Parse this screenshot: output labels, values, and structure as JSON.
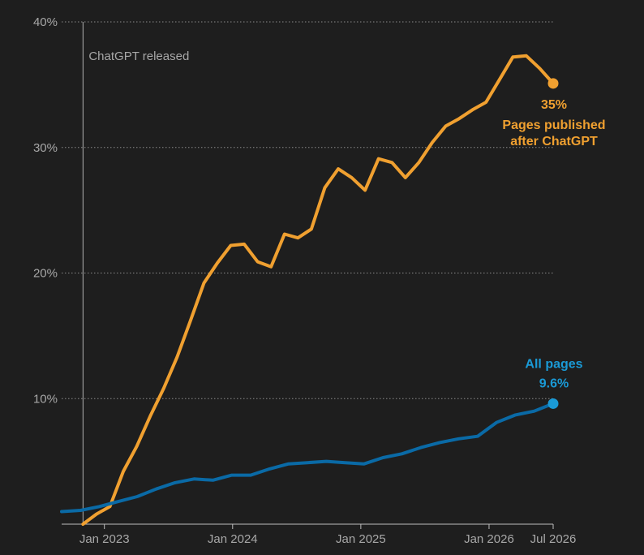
{
  "chart_data": {
    "type": "line",
    "title": "",
    "xlabel": "",
    "ylabel": "",
    "ylim": [
      0,
      40
    ],
    "y_ticks": [
      {
        "value": 10,
        "label": "10%"
      },
      {
        "value": 20,
        "label": "20%"
      },
      {
        "value": 30,
        "label": "30%"
      },
      {
        "value": 40,
        "label": "40%"
      }
    ],
    "x_ticks": [
      {
        "date": "2023-01",
        "label": "Jan 2023"
      },
      {
        "date": "2024-01",
        "label": "Jan 2024"
      },
      {
        "date": "2025-01",
        "label": "Jan 2025"
      },
      {
        "date": "2026-01",
        "label": "Jan 2026"
      },
      {
        "date": "2026-07",
        "label": "Jul 2026"
      }
    ],
    "xlim": [
      "2022-09",
      "2026-07"
    ],
    "grid": "horizontal dotted",
    "annotation": {
      "date": "2022-11",
      "text": "ChatGPT released"
    },
    "series": [
      {
        "name": "Pages published after ChatGPT",
        "color": "#f0a030",
        "end_labels": [
          "35%",
          "Pages published",
          "after ChatGPT"
        ],
        "x": [
          "2022-11",
          "2022-12",
          "2023-01",
          "2023-02",
          "2023-03",
          "2023-04",
          "2023-05",
          "2023-06",
          "2023-07",
          "2023-08",
          "2023-09",
          "2023-10",
          "2023-11",
          "2023-12",
          "2024-01",
          "2024-02",
          "2024-03",
          "2024-04",
          "2024-05",
          "2024-06",
          "2024-07",
          "2024-08",
          "2024-09",
          "2024-10",
          "2024-11",
          "2024-12",
          "2025-01",
          "2025-02",
          "2025-03",
          "2025-04",
          "2025-05",
          "2025-06",
          "2025-07",
          "2025-08",
          "2025-09",
          "2025-10",
          "2025-11",
          "2025-12",
          "2026-01",
          "2026-02",
          "2026-03",
          "2026-04",
          "2026-05",
          "2026-06",
          "2026-07"
        ],
        "y": [
          0,
          0.8,
          1.4,
          4.2,
          6.2,
          8.6,
          10.8,
          13.3,
          16.2,
          19.2,
          20.8,
          22.2,
          22.3,
          20.9,
          20.5,
          23.1,
          22.8,
          23.5,
          26.8,
          28.3,
          27.6,
          26.6,
          29.1,
          28.8,
          27.6,
          28.8,
          30.4,
          31.7,
          32.3,
          33.0,
          33.6,
          35.4,
          37.2,
          37.3,
          36.3,
          35.1,
          null,
          null,
          null,
          null,
          null,
          null,
          null,
          null,
          null
        ]
      },
      {
        "name": "All pages",
        "color": "#0a6aa6",
        "end_labels": [
          "All pages",
          "9.6%"
        ],
        "x": [
          "2022-09",
          "2022-11",
          "2023-01",
          "2023-03",
          "2023-05",
          "2023-07",
          "2023-09",
          "2023-11",
          "2024-01",
          "2024-03",
          "2024-04",
          "2024-05",
          "2024-06",
          "2024-07",
          "2024-08",
          "2024-09",
          "2024-10",
          "2024-11",
          "2024-12",
          "2025-01",
          "2025-02",
          "2025-03",
          "2025-04",
          "2025-05",
          "2025-06",
          "2025-07",
          "2025-08",
          "2025-09",
          "2025-10",
          "2025-11",
          "2025-12",
          "2026-01",
          "2026-02",
          "2026-03",
          "2026-04",
          "2026-05",
          "2026-06",
          "2026-07"
        ],
        "y": [
          1.0,
          1.1,
          1.4,
          1.8,
          2.2,
          2.8,
          3.3,
          3.6,
          3.5,
          3.9,
          3.9,
          4.4,
          4.8,
          4.9,
          5.0,
          4.9,
          4.8,
          5.3,
          5.6,
          6.1,
          6.5,
          6.8,
          7.0,
          8.1,
          8.7,
          9.0,
          9.6,
          null,
          null,
          null,
          null,
          null,
          null,
          null,
          null,
          null,
          null,
          null
        ]
      }
    ]
  }
}
